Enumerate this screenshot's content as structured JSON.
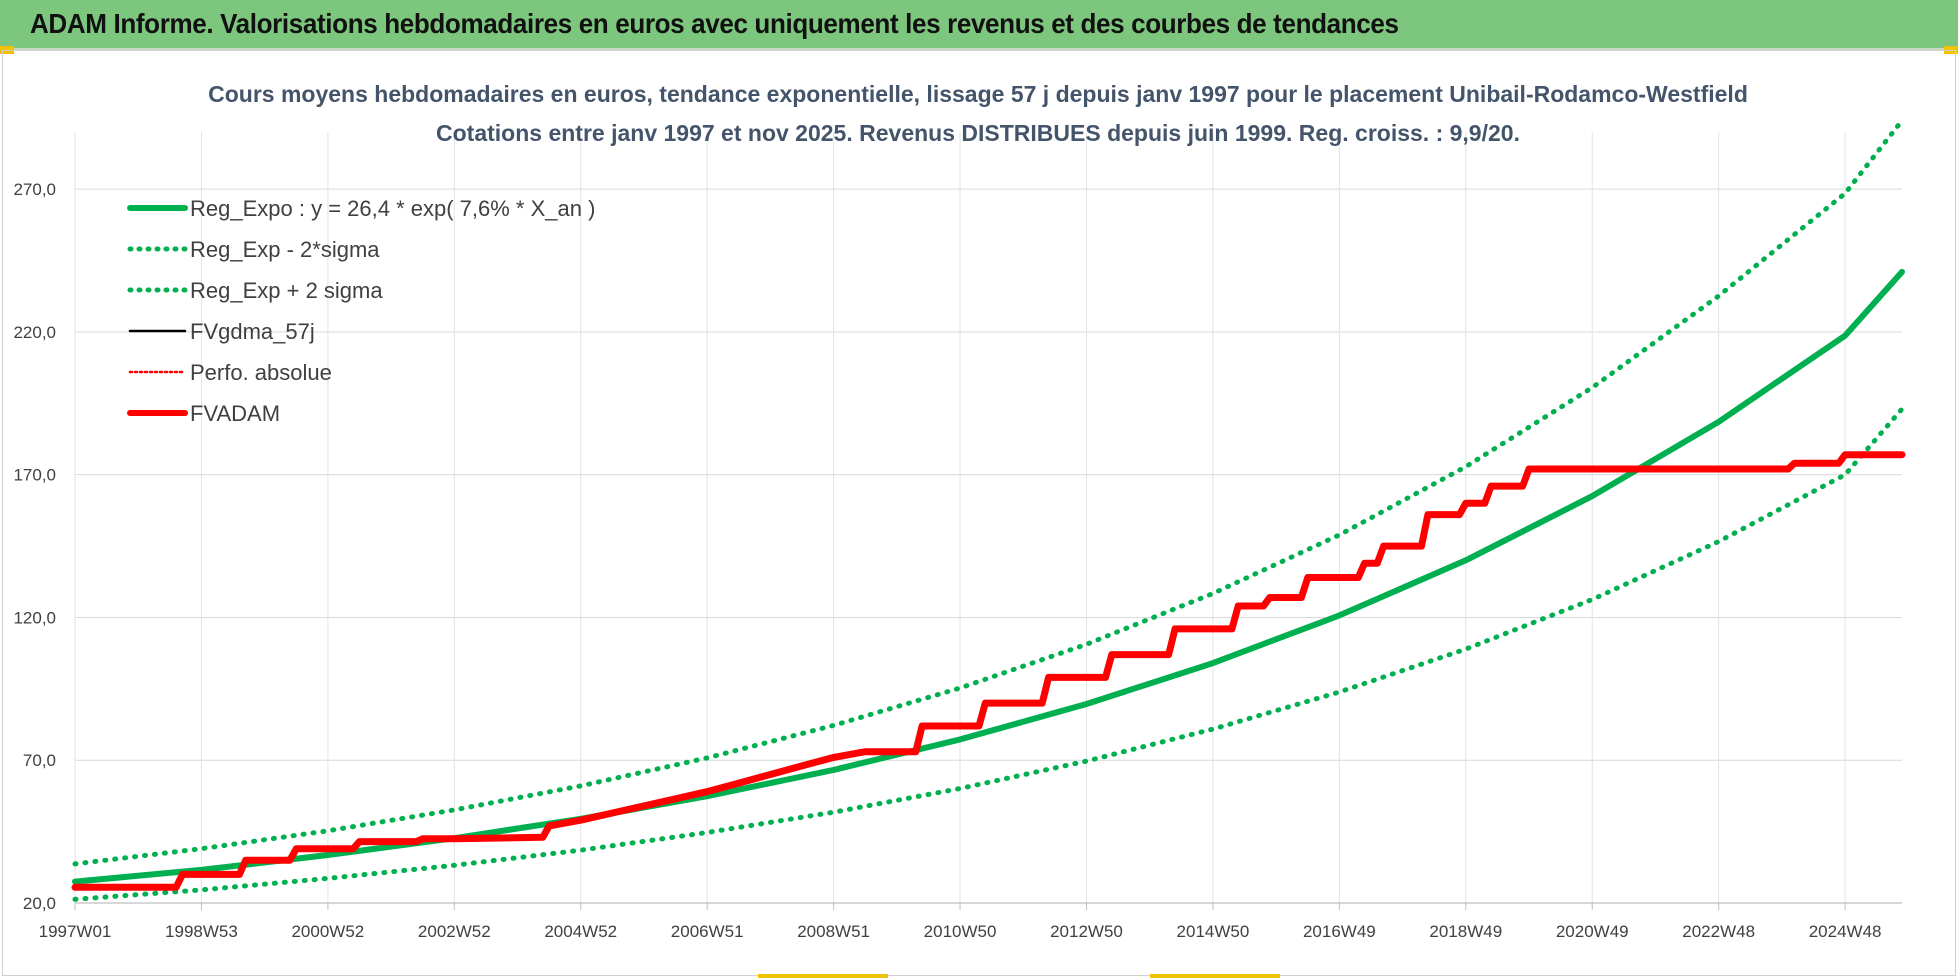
{
  "header": {
    "title": "ADAM Informe. Valorisations hebdomadaires en euros avec uniquement les revenus et des courbes de tendances"
  },
  "colors": {
    "header_bg": "#7dc67d",
    "reg_green": "#00b050",
    "fv_black": "#000000",
    "adam_red": "#ff0000"
  },
  "chart_data": {
    "type": "line",
    "title_lines": [
      "Cours moyens hebdomadaires en euros, tendance exponentielle, lissage 57 j depuis janv 1997 pour le placement Unibail-Rodamco-Westfield",
      "Cotations entre janv 1997 et nov 2025. Revenus DISTRIBUES depuis juin 1999. Reg. croiss. : 9,9/20."
    ],
    "xlabel": "",
    "ylabel": "",
    "ylim": [
      20,
      290
    ],
    "xlim": [
      1997.0,
      2025.9
    ],
    "y_ticks": [
      "20,0",
      "70,0",
      "120,0",
      "170,0",
      "220,0",
      "270,0"
    ],
    "y_tick_values": [
      20,
      70,
      120,
      170,
      220,
      270
    ],
    "x_ticks": [
      "1997W01",
      "1998W53",
      "2000W52",
      "2002W52",
      "2004W52",
      "2006W51",
      "2008W51",
      "2010W50",
      "2012W50",
      "2014W50",
      "2016W49",
      "2018W49",
      "2020W49",
      "2022W48",
      "2024W48"
    ],
    "x_tick_values": [
      1997.0,
      1999.0,
      2001.0,
      2003.0,
      2005.0,
      2007.0,
      2009.0,
      2011.0,
      2013.0,
      2015.0,
      2017.0,
      2019.0,
      2021.0,
      2023.0,
      2025.0
    ],
    "grid": true,
    "legend_position": "top-left",
    "series": [
      {
        "name": "Reg_Expo : y = 26,4 * exp( 7,6% *  X_an )",
        "style": "solid-thick",
        "color": "#00b050",
        "x": [
          1997.0,
          1999.0,
          2001.0,
          2003.0,
          2005.0,
          2007.0,
          2009.0,
          2011.0,
          2013.0,
          2015.0,
          2017.0,
          2019.0,
          2021.0,
          2023.0,
          2025.0,
          2025.9
        ],
        "y": [
          27.5,
          31.6,
          36.8,
          42.7,
          49.5,
          57.4,
          66.6,
          77.3,
          89.7,
          104.0,
          120.7,
          140.0,
          162.5,
          188.5,
          218.7,
          241.0
        ]
      },
      {
        "name": "Reg_Exp - 2*sigma",
        "style": "dotted",
        "color": "#00b050",
        "x": [
          1997.0,
          1999.0,
          2001.0,
          2003.0,
          2005.0,
          2007.0,
          2009.0,
          2011.0,
          2013.0,
          2015.0,
          2017.0,
          2019.0,
          2021.0,
          2023.0,
          2025.0,
          2025.9
        ],
        "y": [
          21.3,
          24.6,
          28.6,
          33.2,
          38.5,
          44.7,
          51.8,
          60.1,
          69.7,
          80.9,
          93.9,
          108.9,
          126.3,
          146.6,
          170.0,
          193.0
        ]
      },
      {
        "name": "Reg_Exp + 2 sigma",
        "style": "dotted",
        "color": "#00b050",
        "x": [
          1997.0,
          1999.0,
          2001.0,
          2003.0,
          2005.0,
          2007.0,
          2009.0,
          2011.0,
          2013.0,
          2015.0,
          2017.0,
          2019.0,
          2021.0,
          2023.0,
          2025.0,
          2025.9
        ],
        "y": [
          33.7,
          39.0,
          45.3,
          52.6,
          61.0,
          70.8,
          82.2,
          95.3,
          110.6,
          128.4,
          148.9,
          172.8,
          200.5,
          232.6,
          268.5,
          294.0
        ]
      },
      {
        "name": "FVgdma_57j",
        "style": "solid-thin",
        "color": "#000000",
        "x": [
          1997.0,
          1998.6,
          1998.7,
          1999.6,
          1999.7,
          2000.4,
          2000.5,
          2001.4,
          2001.5,
          2002.4,
          2002.5,
          2003.0,
          2004.4,
          2004.5,
          2005.0,
          2005.5,
          2006.0,
          2006.5,
          2007.0,
          2007.5,
          2008.0,
          2008.5,
          2009.0,
          2009.5,
          2010.3,
          2010.4,
          2011.3,
          2011.4,
          2012.3,
          2012.4,
          2013.3,
          2013.4,
          2014.3,
          2014.4,
          2015.3,
          2015.4,
          2015.8,
          2015.9,
          2016.4,
          2016.5,
          2017.3,
          2017.4,
          2017.6,
          2017.7,
          2018.3,
          2018.4,
          2018.9,
          2019.0,
          2019.3,
          2019.4,
          2019.9,
          2020.0,
          2024.1,
          2024.2,
          2024.9,
          2025.0,
          2025.9
        ],
        "y": [
          25.5,
          25.5,
          30.0,
          30.0,
          35.0,
          35.0,
          39.0,
          39.0,
          41.5,
          41.5,
          42.5,
          42.5,
          43.0,
          47.0,
          49.0,
          51.5,
          54.0,
          56.5,
          59.0,
          62.0,
          65.0,
          68.0,
          71.0,
          73.0,
          73.0,
          82.0,
          82.0,
          90.0,
          90.0,
          99.0,
          99.0,
          107.0,
          107.0,
          116.0,
          116.0,
          124.0,
          124.0,
          127.0,
          127.0,
          134.0,
          134.0,
          139.0,
          139.0,
          145.0,
          145.0,
          156.0,
          156.0,
          160.0,
          160.0,
          166.0,
          166.0,
          172.0,
          172.0,
          174.0,
          174.0,
          177.0,
          177.0
        ]
      },
      {
        "name": "Perfo. absolue",
        "style": "dotted",
        "color": "#ff0000",
        "x": [
          1997.0,
          1998.6,
          1998.7,
          1999.6,
          1999.7,
          2000.4,
          2000.5,
          2001.4,
          2001.5,
          2002.4,
          2002.5,
          2003.0,
          2004.4,
          2004.5,
          2005.0,
          2005.5,
          2006.0,
          2006.5,
          2007.0,
          2007.5,
          2008.0,
          2008.5,
          2009.0,
          2009.5,
          2010.3,
          2010.4,
          2011.3,
          2011.4,
          2012.3,
          2012.4,
          2013.3,
          2013.4,
          2014.3,
          2014.4,
          2015.3,
          2015.4,
          2015.8,
          2015.9,
          2016.4,
          2016.5,
          2017.3,
          2017.4,
          2017.6,
          2017.7,
          2018.3,
          2018.4,
          2018.9,
          2019.0,
          2019.3,
          2019.4,
          2019.9,
          2020.0,
          2024.1,
          2024.2,
          2024.9,
          2025.0,
          2025.9
        ],
        "y": [
          25.5,
          25.5,
          30.0,
          30.0,
          35.0,
          35.0,
          39.0,
          39.0,
          41.5,
          41.5,
          42.5,
          42.5,
          43.0,
          47.0,
          49.0,
          51.5,
          54.0,
          56.5,
          59.0,
          62.0,
          65.0,
          68.0,
          71.0,
          73.0,
          73.0,
          82.0,
          82.0,
          90.0,
          90.0,
          99.0,
          99.0,
          107.0,
          107.0,
          116.0,
          116.0,
          124.0,
          124.0,
          127.0,
          127.0,
          134.0,
          134.0,
          139.0,
          139.0,
          145.0,
          145.0,
          156.0,
          156.0,
          160.0,
          160.0,
          166.0,
          166.0,
          172.0,
          172.0,
          174.0,
          174.0,
          177.0,
          177.0
        ]
      },
      {
        "name": "FVADAM",
        "style": "solid-thick",
        "color": "#ff0000",
        "x": [
          1997.0,
          1998.6,
          1998.7,
          1999.6,
          1999.7,
          2000.4,
          2000.5,
          2001.4,
          2001.5,
          2002.4,
          2002.5,
          2003.0,
          2004.4,
          2004.5,
          2005.0,
          2005.5,
          2006.0,
          2006.5,
          2007.0,
          2007.5,
          2008.0,
          2008.5,
          2009.0,
          2009.5,
          2010.3,
          2010.4,
          2011.3,
          2011.4,
          2012.3,
          2012.4,
          2013.3,
          2013.4,
          2014.3,
          2014.4,
          2015.3,
          2015.4,
          2015.8,
          2015.9,
          2016.4,
          2016.5,
          2017.3,
          2017.4,
          2017.6,
          2017.7,
          2018.3,
          2018.4,
          2018.9,
          2019.0,
          2019.3,
          2019.4,
          2019.9,
          2020.0,
          2024.1,
          2024.2,
          2024.9,
          2025.0,
          2025.9
        ],
        "y": [
          25.5,
          25.5,
          30.0,
          30.0,
          35.0,
          35.0,
          39.0,
          39.0,
          41.5,
          41.5,
          42.5,
          42.5,
          43.0,
          47.0,
          49.0,
          51.5,
          54.0,
          56.5,
          59.0,
          62.0,
          65.0,
          68.0,
          71.0,
          73.0,
          73.0,
          82.0,
          82.0,
          90.0,
          90.0,
          99.0,
          99.0,
          107.0,
          107.0,
          116.0,
          116.0,
          124.0,
          124.0,
          127.0,
          127.0,
          134.0,
          134.0,
          139.0,
          139.0,
          145.0,
          145.0,
          156.0,
          156.0,
          160.0,
          160.0,
          166.0,
          166.0,
          172.0,
          172.0,
          174.0,
          174.0,
          177.0,
          177.0
        ]
      }
    ]
  }
}
